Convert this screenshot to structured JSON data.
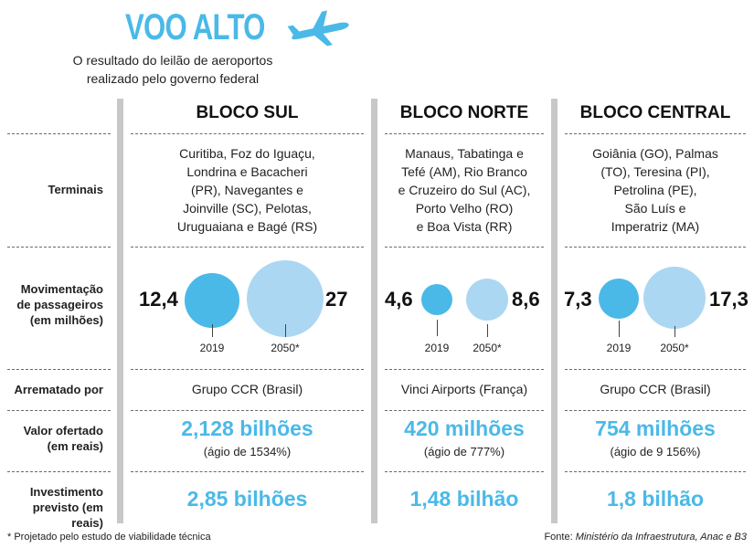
{
  "header": {
    "title": "VOO ALTO",
    "subtitle_line1": "O resultado do leilão de aeroportos",
    "subtitle_line2": "realizado pelo governo federal"
  },
  "columns": [
    {
      "name": "BLOCO SUL",
      "terminais": [
        "Curitiba, Foz do Iguaçu,",
        "Londrina e Bacacheri",
        "(PR), Navegantes e",
        "Joinville (SC), Pelotas,",
        "Uruguaiana e Bagé (RS)"
      ],
      "mov_2019": "12,4",
      "mov_2050": "27",
      "arrematado": "Grupo CCR (Brasil)",
      "valor": "2,128 bilhões",
      "agio": "(ágio de 1534%)",
      "investimento": "2,85 bilhões"
    },
    {
      "name": "BLOCO NORTE",
      "terminais": [
        "Manaus, Tabatinga e",
        "Tefé (AM), Rio Branco",
        "e Cruzeiro do Sul (AC),",
        "Porto Velho (RO)",
        "e Boa Vista (RR)"
      ],
      "mov_2019": "4,6",
      "mov_2050": "8,6",
      "arrematado": "Vinci Airports (França)",
      "valor": "420 milhões",
      "agio": "(ágio de 777%)",
      "investimento": "1,48 bilhão"
    },
    {
      "name": "BLOCO CENTRAL",
      "terminais": [
        "Goiânia (GO), Palmas",
        "(TO), Teresina (PI),",
        "Petrolina (PE),",
        "São Luís e",
        "Imperatriz (MA)"
      ],
      "mov_2019": "7,3",
      "mov_2050": "17,3",
      "arrematado": "Grupo CCR (Brasil)",
      "valor": "754 milhões",
      "agio": "(ágio de 9 156%)",
      "investimento": "1,8 bilhão"
    }
  ],
  "row_labels": {
    "terminais": "Terminais",
    "mov_1": "Movimentação",
    "mov_2": "de passageiros",
    "mov_3": "(em milhões)",
    "arrematado": "Arrematado por",
    "valor_1": "Valor ofertado",
    "valor_2": "(em reais)",
    "invest_1": "Investimento",
    "invest_2": "previsto (em reais)"
  },
  "years": {
    "y2019": "2019",
    "y2050": "2050*"
  },
  "footer": {
    "note": "* Projetado pelo estudo de viabilidade técnica",
    "source_prefix": "Fonte: ",
    "source_text": "Ministério da Infraestrutura, Anac e B3"
  },
  "colors": {
    "accent": "#4ab9e8",
    "light": "#acd7f2",
    "divider": "#c8c8c8"
  },
  "icons": {
    "header_icon": "airplane-icon"
  }
}
